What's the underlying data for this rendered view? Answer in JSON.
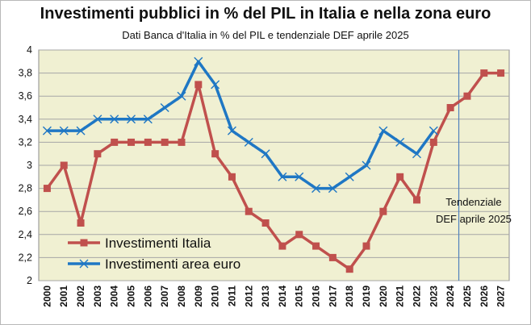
{
  "chart_data": {
    "type": "line",
    "title": "Investimenti pubblici in % del PIL in Italia e nella zona euro",
    "subtitle": "Dati Banca d'Italia in % del PIL e tendenziale DEF aprile 2025",
    "xlabel": "",
    "ylabel": "",
    "ylim": [
      2,
      4
    ],
    "yticks": [
      2,
      2.2,
      2.4,
      2.6,
      2.8,
      3,
      3.2,
      3.4,
      3.6,
      3.8,
      4
    ],
    "ytick_labels": [
      "2",
      "2,2",
      "2,4",
      "2,6",
      "2,8",
      "3",
      "3,2",
      "3,4",
      "3,6",
      "3,8",
      "4"
    ],
    "grid": true,
    "legend_position": "bottom-left",
    "categories": [
      "2000",
      "2001",
      "2002",
      "2003",
      "2004",
      "2005",
      "2006",
      "2007",
      "2008",
      "2009",
      "2010",
      "2011",
      "2012",
      "2013",
      "2014",
      "2015",
      "2016",
      "2017",
      "2018",
      "2019",
      "2020",
      "2021",
      "2022",
      "2023",
      "2024",
      "2025",
      "2026",
      "2027"
    ],
    "series": [
      {
        "name": "Investimenti Italia",
        "color": "#c0504d",
        "marker": "square",
        "values": [
          2.8,
          3.0,
          2.5,
          3.1,
          3.2,
          3.2,
          3.2,
          3.2,
          3.2,
          3.7,
          3.1,
          2.9,
          2.6,
          2.5,
          2.3,
          2.4,
          2.3,
          2.2,
          2.1,
          2.3,
          2.6,
          2.9,
          2.7,
          3.2,
          3.5,
          3.6,
          3.8,
          3.8
        ]
      },
      {
        "name": "Investimenti area euro",
        "color": "#1f77c4",
        "marker": "x",
        "values": [
          3.3,
          3.3,
          3.3,
          3.4,
          3.4,
          3.4,
          3.4,
          3.5,
          3.6,
          3.9,
          3.7,
          3.3,
          3.2,
          3.1,
          2.9,
          2.9,
          2.8,
          2.8,
          2.9,
          3.0,
          3.3,
          3.2,
          3.1,
          3.3,
          null,
          null,
          null,
          null
        ]
      }
    ],
    "annotation": {
      "lines": [
        "Tendenziale",
        "DEF aprile 2025"
      ],
      "divider_between": [
        "2024",
        "2025"
      ]
    }
  },
  "colors": {
    "plot_background": "#f0f0d2",
    "gridline": "#a6a6a6",
    "divider": "#4f81bd"
  }
}
